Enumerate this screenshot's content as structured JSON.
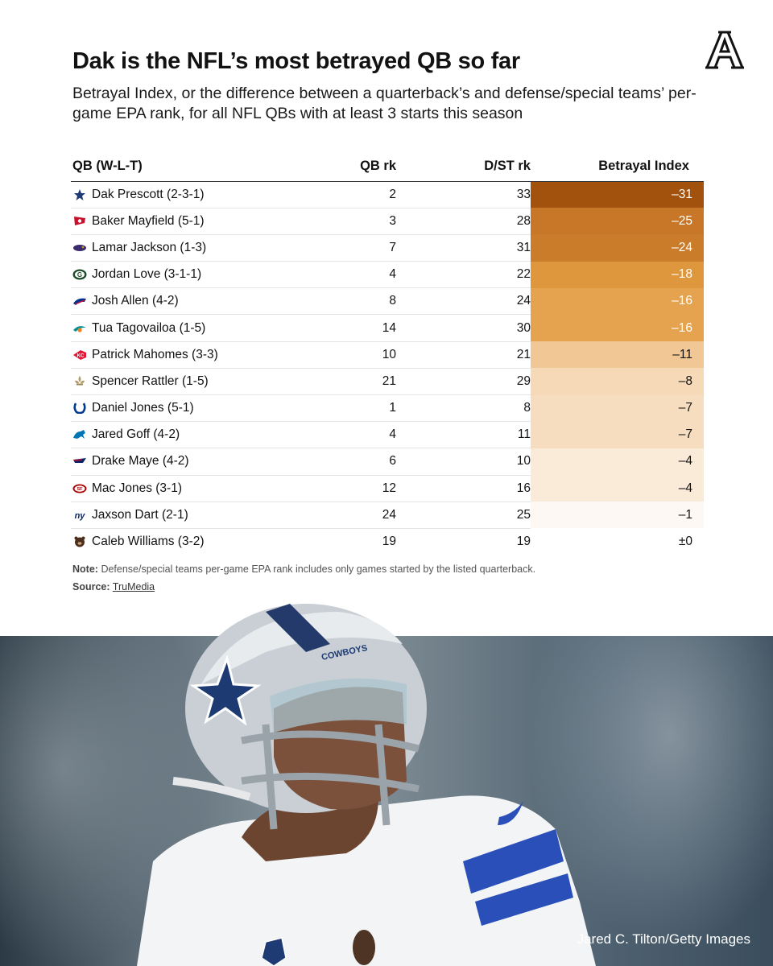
{
  "title": "Dak is the NFL’s most betrayed QB so far",
  "subtitle": "Betrayal Index, or the difference between a quarterback’s and defense/special teams’ per-game EPA rank, for all NFL QBs with at least 3 starts this season",
  "chart_data": {
    "type": "table",
    "columns": [
      "QB (W-L-T)",
      "QB rk",
      "D/ST rk",
      "Betrayal Index"
    ],
    "rows": [
      {
        "qb": "Dak Prescott (2-3-1)",
        "team_icon": "cowboys-star-icon",
        "qb_rk": "2",
        "dst_rk": "33",
        "index": "–31",
        "value": -31
      },
      {
        "qb": "Baker Mayfield (5-1)",
        "team_icon": "buccaneers-flag-icon",
        "qb_rk": "3",
        "dst_rk": "28",
        "index": "–25",
        "value": -25
      },
      {
        "qb": "Lamar Jackson (1-3)",
        "team_icon": "ravens-icon",
        "qb_rk": "7",
        "dst_rk": "31",
        "index": "–24",
        "value": -24
      },
      {
        "qb": "Jordan Love (3-1-1)",
        "team_icon": "packers-g-icon",
        "qb_rk": "4",
        "dst_rk": "22",
        "index": "–18",
        "value": -18
      },
      {
        "qb": "Josh Allen (4-2)",
        "team_icon": "bills-icon",
        "qb_rk": "8",
        "dst_rk": "24",
        "index": "–16",
        "value": -16
      },
      {
        "qb": "Tua Tagovailoa (1-5)",
        "team_icon": "dolphins-icon",
        "qb_rk": "14",
        "dst_rk": "30",
        "index": "–16",
        "value": -16
      },
      {
        "qb": "Patrick Mahomes (3-3)",
        "team_icon": "chiefs-arrowhead-icon",
        "qb_rk": "10",
        "dst_rk": "21",
        "index": "–11",
        "value": -11
      },
      {
        "qb": "Spencer Rattler (1-5)",
        "team_icon": "saints-fleur-icon",
        "qb_rk": "21",
        "dst_rk": "29",
        "index": "–8",
        "value": -8
      },
      {
        "qb": "Daniel Jones (5-1)",
        "team_icon": "colts-horseshoe-icon",
        "qb_rk": "1",
        "dst_rk": "8",
        "index": "–7",
        "value": -7
      },
      {
        "qb": "Jared Goff (4-2)",
        "team_icon": "lions-icon",
        "qb_rk": "4",
        "dst_rk": "11",
        "index": "–7",
        "value": -7
      },
      {
        "qb": "Drake Maye (4-2)",
        "team_icon": "patriots-icon",
        "qb_rk": "6",
        "dst_rk": "10",
        "index": "–4",
        "value": -4
      },
      {
        "qb": "Mac Jones (3-1)",
        "team_icon": "49ers-icon",
        "qb_rk": "12",
        "dst_rk": "16",
        "index": "–4",
        "value": -4
      },
      {
        "qb": "Jaxson Dart (2-1)",
        "team_icon": "giants-ny-icon",
        "qb_rk": "24",
        "dst_rk": "25",
        "index": "–1",
        "value": -1
      },
      {
        "qb": "Caleb Williams (3-2)",
        "team_icon": "bears-icon",
        "qb_rk": "19",
        "dst_rk": "19",
        "index": "±0",
        "value": 0
      }
    ],
    "color_scale": {
      "min_color": "#a3520e",
      "zero_color": "#ffffff"
    }
  },
  "note_label": "Note:",
  "note_text": "Defense/special teams per-game EPA rank includes only games started by the listed quarterback.",
  "source_label": "Source:",
  "source_link": "TruMedia",
  "logo_letter": "A",
  "photo": {
    "helmet_text": "COWBOYS",
    "credit": "Jared C. Tilton/Getty Images"
  }
}
